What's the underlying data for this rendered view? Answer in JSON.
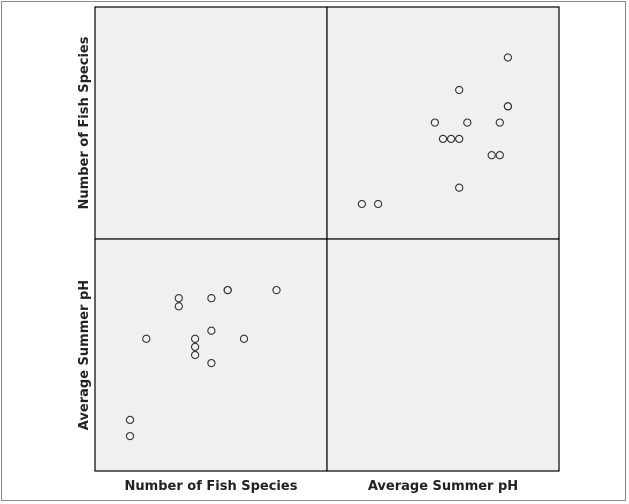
{
  "chart_data": {
    "type": "scatter-matrix",
    "variables": [
      "Number of Fish Species",
      "Average Summer pH"
    ],
    "ranges": {
      "Number of Fish Species": [
        1.85,
        16.1
      ],
      "Average Summer pH": [
        5.37,
        8.23
      ]
    },
    "grid": false,
    "background": "#f0f0f0",
    "marker_color": "#333333",
    "points": [
      {
        "species": 10,
        "ph": 7.6
      },
      {
        "species": 10,
        "ph": 7.6
      },
      {
        "species": 13,
        "ph": 7.6
      },
      {
        "species": 7,
        "ph": 7.5
      },
      {
        "species": 7,
        "ph": 7.4
      },
      {
        "species": 9,
        "ph": 7.5
      },
      {
        "species": 9,
        "ph": 7.1
      },
      {
        "species": 5,
        "ph": 7.0
      },
      {
        "species": 8,
        "ph": 7.0
      },
      {
        "species": 8,
        "ph": 6.9
      },
      {
        "species": 8,
        "ph": 6.8
      },
      {
        "species": 11,
        "ph": 7.0
      },
      {
        "species": 9,
        "ph": 6.7
      },
      {
        "species": 4,
        "ph": 6.0
      },
      {
        "species": 4,
        "ph": 5.8
      }
    ]
  },
  "labels": {
    "row1": "Number of Fish Species",
    "row2": "Average Summer pH",
    "col1": "Number of Fish Species",
    "col2": "Average Summer pH"
  }
}
